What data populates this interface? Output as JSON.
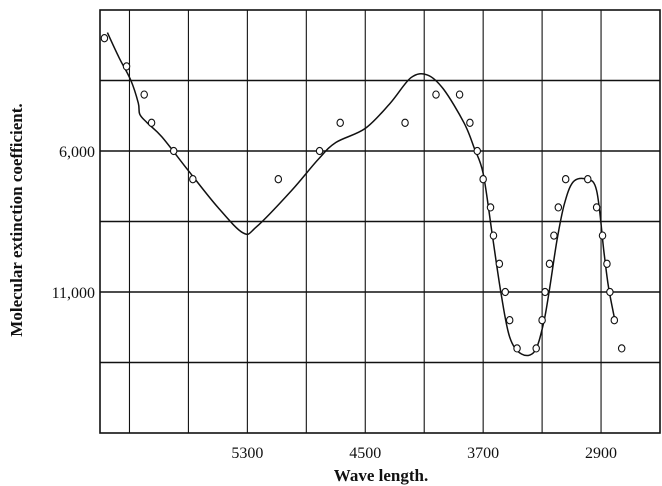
{
  "chart_data": {
    "type": "line",
    "title": "",
    "xlabel": "Wave length.",
    "ylabel": "Molecular extinction coefficient.",
    "x_reversed": true,
    "y_reversed": true,
    "xlim": [
      6300,
      2500
    ],
    "ylim": [
      1000,
      16000
    ],
    "x_gridlines": [
      6100,
      5700,
      5300,
      4900,
      4500,
      4100,
      3700,
      3300,
      2900
    ],
    "y_gridlines": [
      3500,
      6000,
      8500,
      11000,
      13500
    ],
    "x_ticks": [
      {
        "value": 5300,
        "label": "5300"
      },
      {
        "value": 4500,
        "label": "4500"
      },
      {
        "value": 3700,
        "label": "3700"
      },
      {
        "value": 2900,
        "label": "2900"
      }
    ],
    "y_ticks": [
      {
        "value": 6000,
        "label": "6,000"
      },
      {
        "value": 11000,
        "label": "11,000"
      }
    ],
    "grid": true,
    "series": [
      {
        "kind": "curve",
        "points": [
          [
            6250,
            1800
          ],
          [
            6170,
            2700
          ],
          [
            6090,
            3500
          ],
          [
            6040,
            4300
          ],
          [
            6030,
            4700
          ],
          [
            5980,
            5000
          ],
          [
            5880,
            5500
          ],
          [
            5700,
            6700
          ],
          [
            5500,
            8000
          ],
          [
            5330,
            8900
          ],
          [
            5240,
            8700
          ],
          [
            5000,
            7400
          ],
          [
            4820,
            6300
          ],
          [
            4700,
            5700
          ],
          [
            4500,
            5200
          ],
          [
            4330,
            4300
          ],
          [
            4190,
            3400
          ],
          [
            4080,
            3300
          ],
          [
            3970,
            3800
          ],
          [
            3830,
            5000
          ],
          [
            3760,
            5900
          ],
          [
            3700,
            6800
          ],
          [
            3640,
            8900
          ],
          [
            3580,
            11000
          ],
          [
            3520,
            12600
          ],
          [
            3440,
            13200
          ],
          [
            3350,
            13100
          ],
          [
            3290,
            12100
          ],
          [
            3250,
            10900
          ],
          [
            3200,
            9200
          ],
          [
            3150,
            7900
          ],
          [
            3090,
            7100
          ],
          [
            3000,
            7000
          ],
          [
            2930,
            7400
          ],
          [
            2880,
            9600
          ],
          [
            2850,
            10800
          ],
          [
            2810,
            11900
          ]
        ]
      },
      {
        "kind": "observed",
        "points": [
          [
            6270,
            2000
          ],
          [
            6120,
            3000
          ],
          [
            6000,
            4000
          ],
          [
            5950,
            5000
          ],
          [
            5800,
            6000
          ],
          [
            5670,
            7000
          ],
          [
            5090,
            7000
          ],
          [
            4810,
            6000
          ],
          [
            4670,
            5000
          ],
          [
            4230,
            5000
          ],
          [
            4020,
            4000
          ],
          [
            3860,
            4000
          ],
          [
            3790,
            5000
          ],
          [
            3740,
            6000
          ],
          [
            3700,
            7000
          ],
          [
            3650,
            8000
          ],
          [
            3630,
            9000
          ],
          [
            3590,
            10000
          ],
          [
            3550,
            11000
          ],
          [
            3520,
            12000
          ],
          [
            3470,
            13000
          ],
          [
            3340,
            13000
          ],
          [
            3300,
            12000
          ],
          [
            3280,
            11000
          ],
          [
            3250,
            10000
          ],
          [
            3220,
            9000
          ],
          [
            3190,
            8000
          ],
          [
            3140,
            7000
          ],
          [
            2990,
            7000
          ],
          [
            2930,
            8000
          ],
          [
            2890,
            9000
          ],
          [
            2860,
            10000
          ],
          [
            2840,
            11000
          ],
          [
            2810,
            12000
          ],
          [
            2760,
            13000
          ]
        ]
      }
    ]
  }
}
